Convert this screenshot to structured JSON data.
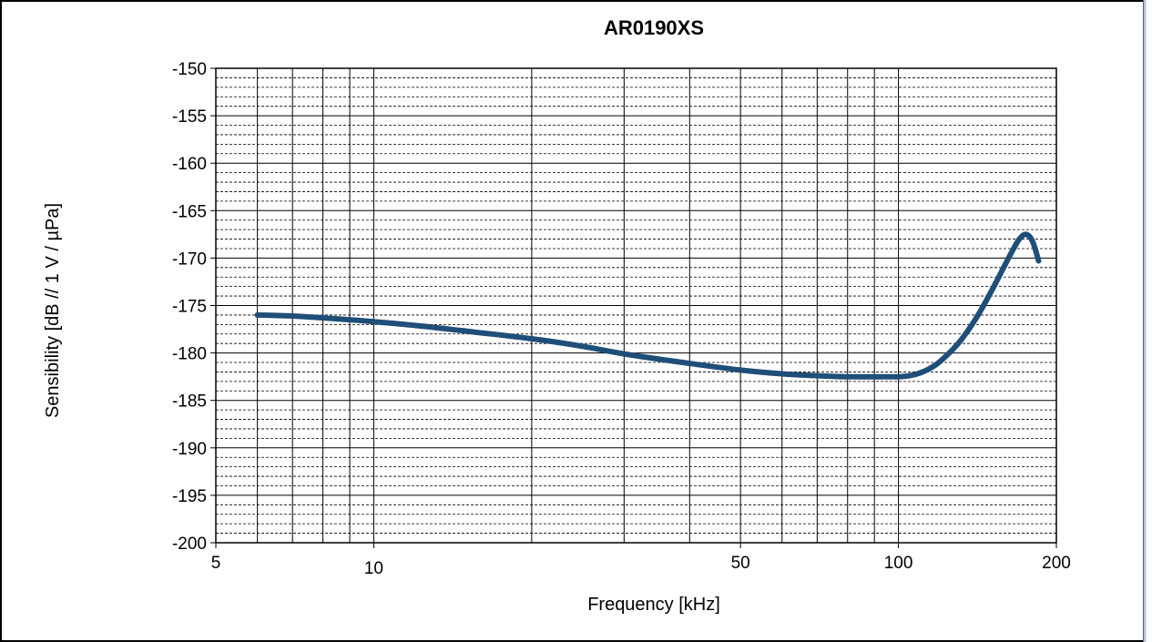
{
  "chart_data": {
    "type": "line",
    "title": "AR0190XS",
    "xlabel": "Frequency [kHz]",
    "ylabel": "Sensibility [dB // 1 V / µPa]",
    "x_scale": "log",
    "xlim": [
      5,
      200
    ],
    "ylim": [
      -200,
      -150
    ],
    "x_ticks": [
      5,
      10,
      50,
      100,
      200
    ],
    "x_tick_labels": [
      "5",
      "10",
      "50",
      "100",
      "200"
    ],
    "y_ticks": [
      -150,
      -155,
      -160,
      -165,
      -170,
      -175,
      -180,
      -185,
      -190,
      -195,
      -200
    ],
    "y_tick_labels": [
      "-150",
      "-155",
      "-160",
      "-165",
      "-170",
      "-175",
      "-180",
      "-185",
      "-190",
      "-195",
      "-200"
    ],
    "grid": true,
    "legend": "none",
    "series": [
      {
        "color": "#1f4e79",
        "x": [
          6,
          7,
          8,
          9,
          10,
          12,
          15,
          20,
          25,
          30,
          40,
          50,
          60,
          70,
          80,
          90,
          100,
          105,
          110,
          115,
          120,
          130,
          140,
          150,
          160,
          165,
          170,
          175,
          180,
          185
        ],
        "y": [
          -176.0,
          -176.1,
          -176.3,
          -176.5,
          -176.7,
          -177.1,
          -177.7,
          -178.5,
          -179.3,
          -180.1,
          -181.1,
          -181.8,
          -182.2,
          -182.4,
          -182.5,
          -182.5,
          -182.5,
          -182.4,
          -182.1,
          -181.6,
          -180.9,
          -179.0,
          -176.5,
          -173.6,
          -170.6,
          -169.2,
          -168.0,
          -167.5,
          -168.2,
          -170.3
        ]
      }
    ]
  }
}
